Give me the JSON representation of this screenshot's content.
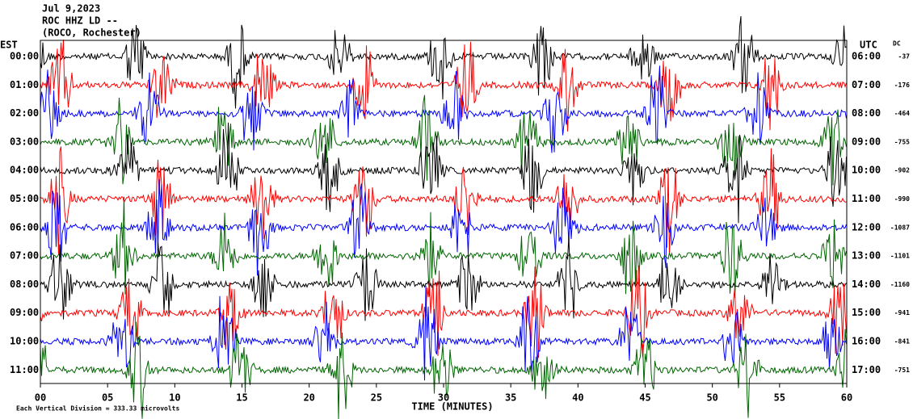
{
  "chart_data": {
    "type": "helicorder",
    "date": "Jul 9,2023",
    "station": "ROC HHZ LD --",
    "location": "(ROCO, Rochester)",
    "left_zone": "EST",
    "right_zone": "UTC",
    "dc_header": "DC",
    "xlabel": "TIME (MINUTES)",
    "footer": "Each Vertical Division = 333.33 microvolts",
    "xlim": [
      0,
      60
    ],
    "xticks": [
      {
        "value": 0,
        "label": "00"
      },
      {
        "value": 5,
        "label": "05"
      },
      10,
      15,
      20,
      25,
      30,
      35,
      40,
      45,
      50,
      55,
      60
    ],
    "colors": [
      "#000000",
      "#ff0000",
      "#0000ff",
      "#006400"
    ],
    "rows": [
      {
        "est": "00:00",
        "utc": "06:00",
        "dc": -37
      },
      {
        "est": "01:00",
        "utc": "07:00",
        "dc": -176
      },
      {
        "est": "02:00",
        "utc": "08:00",
        "dc": -464
      },
      {
        "est": "03:00",
        "utc": "09:00",
        "dc": -755
      },
      {
        "est": "04:00",
        "utc": "10:00",
        "dc": -902
      },
      {
        "est": "05:00",
        "utc": "11:00",
        "dc": -990
      },
      {
        "est": "06:00",
        "utc": "12:00",
        "dc": -1087
      },
      {
        "est": "07:00",
        "utc": "13:00",
        "dc": -1101
      },
      {
        "est": "08:00",
        "utc": "14:00",
        "dc": -1160
      },
      {
        "est": "09:00",
        "utc": "15:00",
        "dc": -941
      },
      {
        "est": "10:00",
        "utc": "16:00",
        "dc": -841
      },
      {
        "est": "11:00",
        "utc": "17:00",
        "dc": -751
      }
    ]
  }
}
